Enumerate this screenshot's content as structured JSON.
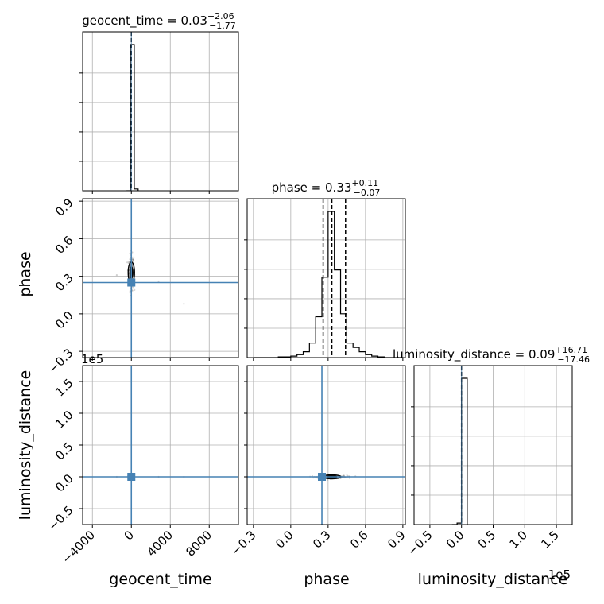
{
  "chart_data": {
    "type": "corner",
    "parameters": [
      {
        "name": "geocent_time",
        "label": "geocent_time",
        "median": "0.03",
        "upper": "+2.06",
        "lower": "−1.77",
        "range": [
          -5000,
          11000
        ],
        "ticks": [
          -4000,
          0,
          4000,
          8000
        ],
        "tick_labels": [
          "−4000",
          "0",
          "4000",
          "8000"
        ],
        "truth": 0
      },
      {
        "name": "phase",
        "label": "phase",
        "median": "0.33",
        "upper": "+0.11",
        "lower": "−0.07",
        "range": [
          -0.35,
          0.92
        ],
        "ticks": [
          -0.3,
          0.0,
          0.3,
          0.6,
          0.9
        ],
        "tick_labels": [
          "−0.3",
          "0.0",
          "0.3",
          "0.6",
          "0.9"
        ],
        "truth": 0.25,
        "quantiles": [
          0.26,
          0.33,
          0.44
        ]
      },
      {
        "name": "luminosity_distance",
        "label": "luminosity_distance",
        "median": "0.09",
        "upper": "+16.71",
        "lower": "−17.46",
        "range": [
          -0.75,
          1.75
        ],
        "ticks": [
          -0.5,
          0.0,
          0.5,
          1.0,
          1.5
        ],
        "tick_labels": [
          "−0.5",
          "0.0",
          "0.5",
          "1.0",
          "1.5"
        ],
        "truth": 0,
        "offset_label": "1e5"
      }
    ],
    "histograms": {
      "geocent_time": {
        "bin_edges": [
          -500,
          -100,
          300,
          700
        ],
        "counts": [
          0,
          1.0,
          0.012
        ]
      },
      "phase": {
        "bin_edges": [
          -0.3,
          -0.25,
          -0.2,
          -0.15,
          -0.1,
          -0.05,
          0.0,
          0.05,
          0.1,
          0.15,
          0.2,
          0.25,
          0.3,
          0.35,
          0.4,
          0.45,
          0.5,
          0.55,
          0.6,
          0.65,
          0.7,
          0.75,
          0.8,
          0.85,
          0.9
        ],
        "counts": [
          0,
          0,
          0,
          0,
          0.005,
          0.005,
          0.01,
          0.02,
          0.04,
          0.1,
          0.28,
          0.55,
          1.0,
          0.6,
          0.3,
          0.1,
          0.07,
          0.04,
          0.02,
          0.01,
          0.005,
          0,
          0,
          0
        ]
      },
      "luminosity_distance": {
        "bin_edges": [
          -0.15,
          -0.07,
          0.0,
          0.09
        ],
        "counts": [
          0,
          0.01,
          1.0
        ]
      }
    },
    "grid": true,
    "truth_color": "#4682b4"
  }
}
